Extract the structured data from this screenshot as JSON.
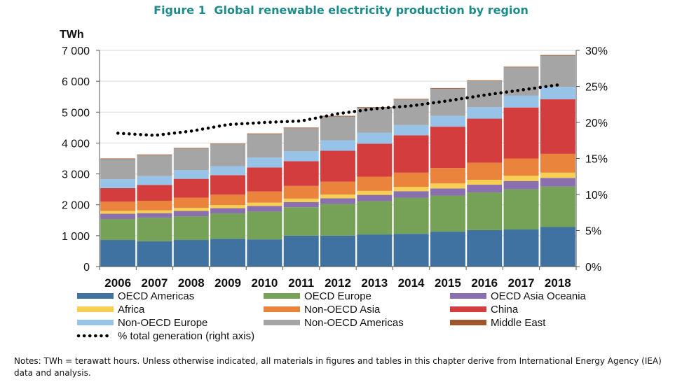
{
  "figure": {
    "number": "Figure 1",
    "title": "Global renewable electricity production by region"
  },
  "notes": "Notes: TWh = terawatt hours. Unless otherwise indicated, all materials in figures and tables in this chapter derive from International Energy Agency (IEA) data and analysis.",
  "chart_data": {
    "type": "bar",
    "stacked": true,
    "title": "Global renewable electricity production by region",
    "ylabel": "TWh",
    "y2label": "% total generation",
    "ylim": [
      0,
      7000
    ],
    "y2lim": [
      0,
      30
    ],
    "yticks": [
      "0",
      "1 000",
      "2 000",
      "3 000",
      "4 000",
      "5 000",
      "6 000",
      "7 000"
    ],
    "y2ticks": [
      "0%",
      "5%",
      "10%",
      "15%",
      "20%",
      "25%",
      "30%"
    ],
    "grid": true,
    "legend": "bottom",
    "categories": [
      "2006",
      "2007",
      "2008",
      "2009",
      "2010",
      "2011",
      "2012",
      "2013",
      "2014",
      "2015",
      "2016",
      "2017",
      "2018"
    ],
    "series": [
      {
        "name": "OECD Americas",
        "color": "#3f72a0",
        "values": [
          860,
          820,
          860,
          900,
          880,
          1000,
          1000,
          1040,
          1060,
          1130,
          1180,
          1200,
          1280
        ]
      },
      {
        "name": "OECD Europe",
        "color": "#76a257",
        "values": [
          680,
          760,
          770,
          820,
          900,
          920,
          1030,
          1080,
          1170,
          1170,
          1220,
          1300,
          1310
        ]
      },
      {
        "name": "OECD Asia Oceania",
        "color": "#8a6fae",
        "values": [
          170,
          150,
          170,
          170,
          180,
          170,
          180,
          200,
          210,
          230,
          250,
          270,
          280
        ]
      },
      {
        "name": "Africa",
        "color": "#f7cf53",
        "values": [
          90,
          90,
          100,
          100,
          110,
          110,
          120,
          130,
          140,
          160,
          160,
          170,
          170
        ]
      },
      {
        "name": "Non-OECD Asia",
        "color": "#ea843c",
        "values": [
          300,
          310,
          330,
          340,
          360,
          410,
          420,
          460,
          460,
          500,
          550,
          560,
          610
        ]
      },
      {
        "name": "China",
        "color": "#d43d3d",
        "values": [
          440,
          510,
          610,
          630,
          780,
          800,
          1000,
          1070,
          1210,
          1340,
          1430,
          1650,
          1770
        ]
      },
      {
        "name": "Non-OECD Europe",
        "color": "#97c3e9",
        "values": [
          290,
          290,
          280,
          290,
          320,
          320,
          340,
          350,
          330,
          350,
          370,
          380,
          400
        ]
      },
      {
        "name": "Non-OECD Americas",
        "color": "#a5a5a5",
        "values": [
          650,
          680,
          700,
          710,
          760,
          750,
          770,
          810,
          830,
          880,
          850,
          920,
          1010
        ]
      },
      {
        "name": "Middle East",
        "color": "#a0562c",
        "values": [
          20,
          20,
          20,
          20,
          20,
          20,
          20,
          20,
          20,
          20,
          20,
          20,
          20
        ]
      }
    ],
    "line": {
      "name": "% total generation",
      "axis": "right",
      "unit": "%",
      "values": [
        18.5,
        18.2,
        18.8,
        19.7,
        20.0,
        20.2,
        21.2,
        21.9,
        22.3,
        23.0,
        23.8,
        24.5,
        25.2
      ]
    },
    "line_legend_label": "% total generation   (right axis)"
  }
}
